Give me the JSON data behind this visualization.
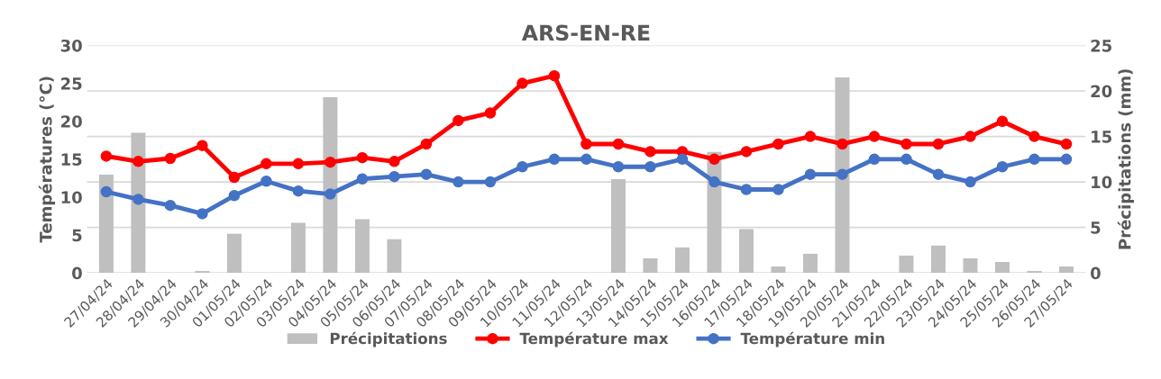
{
  "chart_data": {
    "type": "line",
    "title": "ARS-EN-RE",
    "ylabel": "Températures (°C)",
    "y2label": "Précipitations (mm)",
    "categories": [
      "27/04/24",
      "28/04/24",
      "29/04/24",
      "30/04/24",
      "01/05/24",
      "02/05/24",
      "03/05/24",
      "04/05/24",
      "05/05/24",
      "06/05/24",
      "07/05/24",
      "08/05/24",
      "09/05/24",
      "10/05/24",
      "11/05/24",
      "12/05/24",
      "13/05/24",
      "14/05/24",
      "15/05/24",
      "16/05/24",
      "17/05/24",
      "18/05/24",
      "19/05/24",
      "20/05/24",
      "21/05/24",
      "22/05/24",
      "23/05/24",
      "24/05/24",
      "25/05/24",
      "26/05/24",
      "27/05/24"
    ],
    "series": [
      {
        "name": "Précipitations",
        "type": "bar",
        "axis": "y2",
        "color": "#bfbfbf",
        "values": [
          10.8,
          15.4,
          0,
          0.2,
          4.3,
          0,
          5.5,
          19.3,
          5.9,
          3.7,
          0,
          0,
          0,
          0,
          0,
          0,
          10.3,
          1.6,
          2.8,
          13.3,
          4.8,
          0.7,
          2.1,
          21.5,
          0,
          1.9,
          3.0,
          1.6,
          1.2,
          0.2,
          0.7
        ]
      },
      {
        "name": "Température max",
        "color": "#ff0000",
        "values": [
          15.4,
          14.7,
          15.1,
          16.8,
          12.6,
          14.4,
          14.4,
          14.6,
          15.2,
          14.7,
          17,
          20.1,
          21.1,
          25,
          26,
          17,
          17,
          16,
          16,
          15,
          16,
          17,
          18,
          17,
          18,
          17,
          17,
          18,
          20,
          18,
          17
        ]
      },
      {
        "name": "Température min",
        "color": "#4472c4",
        "values": [
          10.7,
          9.7,
          8.9,
          7.8,
          10.2,
          12.1,
          10.8,
          10.4,
          12.4,
          12.7,
          13,
          12,
          12,
          14,
          15,
          15,
          14,
          14,
          15,
          12,
          11,
          11,
          13,
          13,
          15,
          15,
          13,
          12,
          14,
          15,
          15
        ]
      }
    ],
    "ylim": [
      0,
      30
    ],
    "yticks": [
      0,
      5,
      10,
      15,
      20,
      25,
      30
    ],
    "y2lim": [
      0,
      25
    ],
    "y2ticks": [
      0,
      5,
      10,
      15,
      20,
      25
    ],
    "grid": "y",
    "legend": "bottom",
    "marker": "circle",
    "line_style": "solid"
  }
}
